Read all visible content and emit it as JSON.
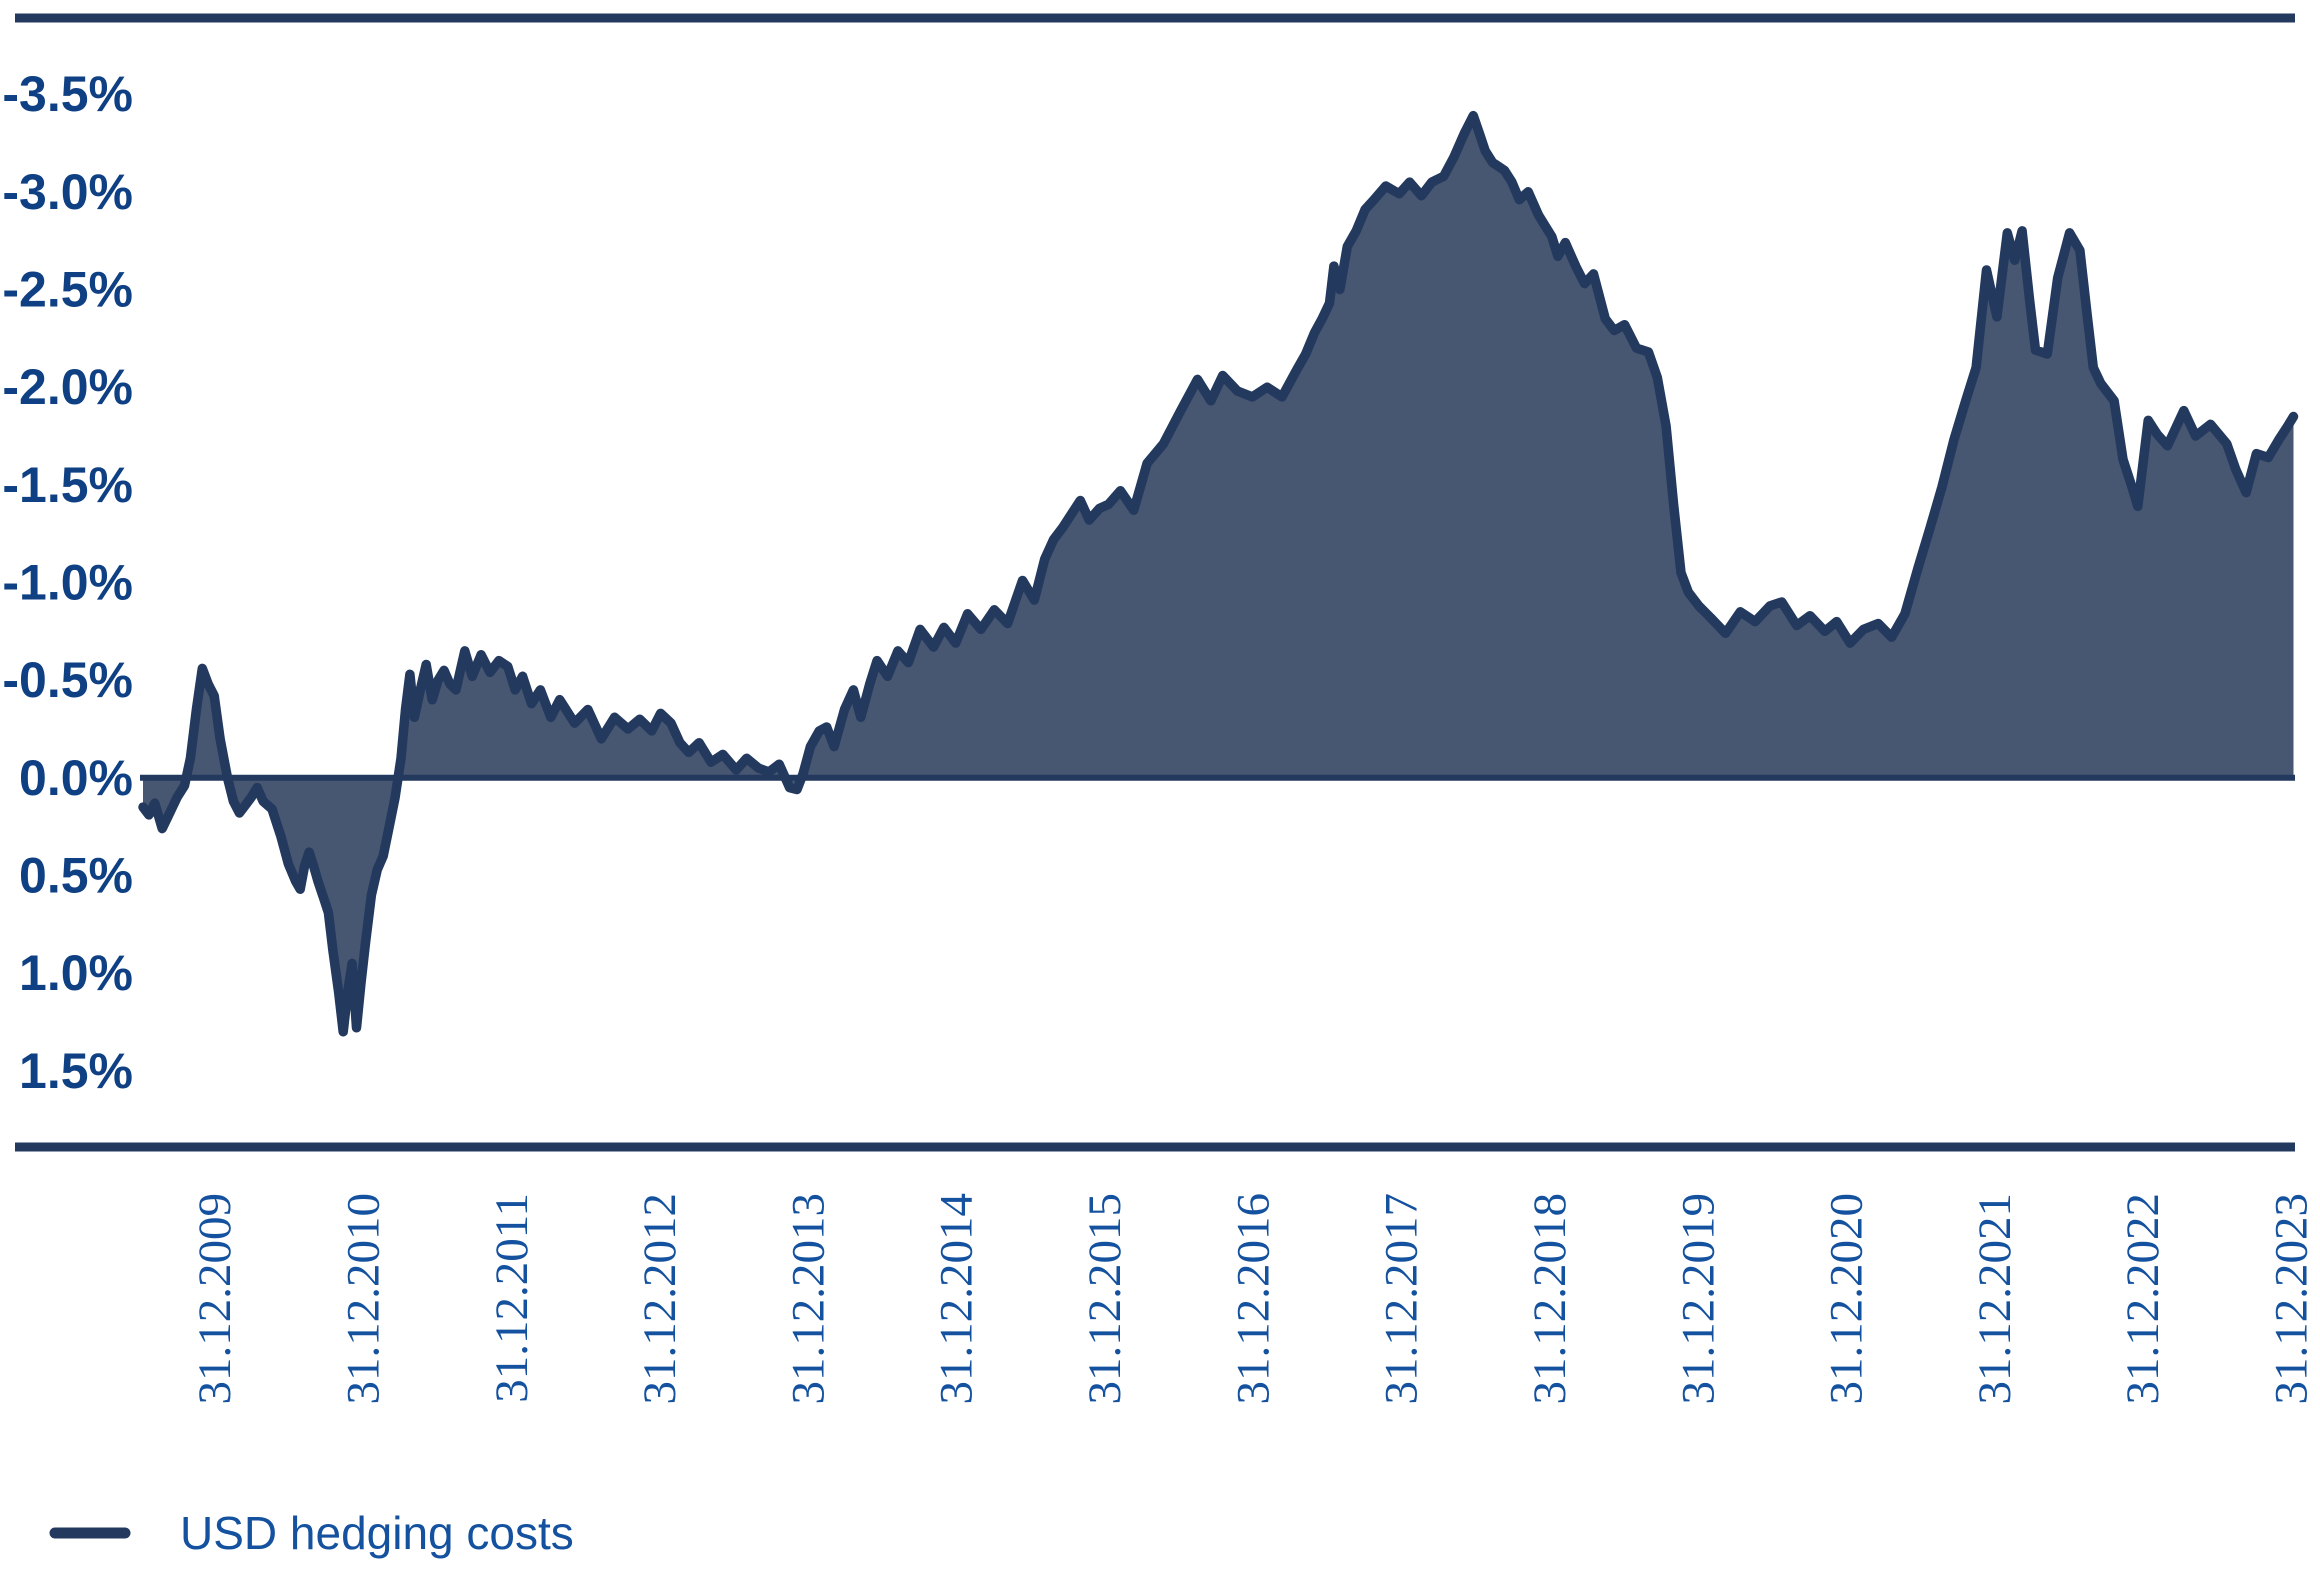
{
  "chart_data": {
    "type": "area",
    "title": "",
    "xlabel": "",
    "ylabel": "",
    "legend_position": "bottom-left",
    "grid": false,
    "y_axis_inverted": true,
    "y_unit": "%",
    "x_domain": [
      2009.5,
      2024.03
    ],
    "y_domain": [
      -3.89,
      1.89
    ],
    "y_ticks": [
      {
        "v": -3.5,
        "label": "-3.5%"
      },
      {
        "v": -3.0,
        "label": "-3.0%"
      },
      {
        "v": -2.5,
        "label": "-2.5%"
      },
      {
        "v": -2.0,
        "label": "-2.0%"
      },
      {
        "v": -1.5,
        "label": "-1.5%"
      },
      {
        "v": -1.0,
        "label": "-1.0%"
      },
      {
        "v": -0.5,
        "label": "-0.5%"
      },
      {
        "v": 0.0,
        "label": "0.0%"
      },
      {
        "v": 0.5,
        "label": "0.5%"
      },
      {
        "v": 1.0,
        "label": "1.0%"
      },
      {
        "v": 1.5,
        "label": "1.5%"
      }
    ],
    "x_ticks": [
      {
        "t": 2010,
        "label": "31.12.2009"
      },
      {
        "t": 2011,
        "label": "31.12.2010"
      },
      {
        "t": 2012,
        "label": "31.12.2011"
      },
      {
        "t": 2013,
        "label": "31.12.2012"
      },
      {
        "t": 2014,
        "label": "31.12.2013"
      },
      {
        "t": 2015,
        "label": "31.12.2014"
      },
      {
        "t": 2016,
        "label": "31.12.2015"
      },
      {
        "t": 2017,
        "label": "31.12.2016"
      },
      {
        "t": 2018,
        "label": "31.12.2017"
      },
      {
        "t": 2019,
        "label": "31.12.2018"
      },
      {
        "t": 2020,
        "label": "31.12.2019"
      },
      {
        "t": 2021,
        "label": "31.12.2020"
      },
      {
        "t": 2022,
        "label": "31.12.2021"
      },
      {
        "t": 2023,
        "label": "31.12.2022"
      },
      {
        "t": 2024,
        "label": "31.12.2023"
      }
    ],
    "colors": {
      "line": "#23395E",
      "fill": "#475671",
      "frame": "#23395E",
      "zero_line": "#23395E",
      "y_label": "#0E4083",
      "x_label": "#14519E",
      "legend_text": "#14519E"
    },
    "series": [
      {
        "name": "USD hedging costs",
        "points": [
          [
            2009.52,
            0.15
          ],
          [
            2009.56,
            0.19
          ],
          [
            2009.6,
            0.13
          ],
          [
            2009.65,
            0.26
          ],
          [
            2009.7,
            0.18
          ],
          [
            2009.75,
            0.1
          ],
          [
            2009.8,
            0.04
          ],
          [
            2009.84,
            -0.1
          ],
          [
            2009.88,
            -0.35
          ],
          [
            2009.92,
            -0.56
          ],
          [
            2009.96,
            -0.48
          ],
          [
            2010.0,
            -0.42
          ],
          [
            2010.04,
            -0.2
          ],
          [
            2010.09,
            0.0
          ],
          [
            2010.13,
            0.12
          ],
          [
            2010.17,
            0.18
          ],
          [
            2010.21,
            0.14
          ],
          [
            2010.25,
            0.1
          ],
          [
            2010.29,
            0.05
          ],
          [
            2010.33,
            0.12
          ],
          [
            2010.39,
            0.16
          ],
          [
            2010.45,
            0.3
          ],
          [
            2010.5,
            0.44
          ],
          [
            2010.55,
            0.53
          ],
          [
            2010.58,
            0.57
          ],
          [
            2010.61,
            0.45
          ],
          [
            2010.64,
            0.38
          ],
          [
            2010.67,
            0.45
          ],
          [
            2010.7,
            0.53
          ],
          [
            2010.74,
            0.62
          ],
          [
            2010.77,
            0.69
          ],
          [
            2010.8,
            0.88
          ],
          [
            2010.84,
            1.1
          ],
          [
            2010.87,
            1.3
          ],
          [
            2010.9,
            1.1
          ],
          [
            2010.93,
            0.95
          ],
          [
            2010.96,
            1.28
          ],
          [
            2010.99,
            1.05
          ],
          [
            2011.02,
            0.85
          ],
          [
            2011.06,
            0.6
          ],
          [
            2011.1,
            0.47
          ],
          [
            2011.14,
            0.4
          ],
          [
            2011.18,
            0.25
          ],
          [
            2011.22,
            0.1
          ],
          [
            2011.26,
            -0.1
          ],
          [
            2011.29,
            -0.35
          ],
          [
            2011.32,
            -0.53
          ],
          [
            2011.35,
            -0.31
          ],
          [
            2011.39,
            -0.45
          ],
          [
            2011.43,
            -0.58
          ],
          [
            2011.47,
            -0.4
          ],
          [
            2011.51,
            -0.5
          ],
          [
            2011.55,
            -0.55
          ],
          [
            2011.59,
            -0.48
          ],
          [
            2011.63,
            -0.45
          ],
          [
            2011.69,
            -0.65
          ],
          [
            2011.74,
            -0.52
          ],
          [
            2011.8,
            -0.63
          ],
          [
            2011.86,
            -0.54
          ],
          [
            2011.92,
            -0.6
          ],
          [
            2011.98,
            -0.57
          ],
          [
            2012.03,
            -0.45
          ],
          [
            2012.08,
            -0.52
          ],
          [
            2012.14,
            -0.38
          ],
          [
            2012.2,
            -0.45
          ],
          [
            2012.27,
            -0.31
          ],
          [
            2012.33,
            -0.4
          ],
          [
            2012.43,
            -0.28
          ],
          [
            2012.52,
            -0.35
          ],
          [
            2012.61,
            -0.2
          ],
          [
            2012.7,
            -0.31
          ],
          [
            2012.79,
            -0.25
          ],
          [
            2012.87,
            -0.3
          ],
          [
            2012.95,
            -0.24
          ],
          [
            2013.01,
            -0.33
          ],
          [
            2013.08,
            -0.28
          ],
          [
            2013.14,
            -0.18
          ],
          [
            2013.2,
            -0.13
          ],
          [
            2013.27,
            -0.18
          ],
          [
            2013.35,
            -0.08
          ],
          [
            2013.43,
            -0.12
          ],
          [
            2013.52,
            -0.04
          ],
          [
            2013.59,
            -0.1
          ],
          [
            2013.67,
            -0.05
          ],
          [
            2013.74,
            -0.03
          ],
          [
            2013.81,
            -0.07
          ],
          [
            2013.88,
            0.05
          ],
          [
            2013.93,
            0.06
          ],
          [
            2013.97,
            -0.02
          ],
          [
            2014.02,
            -0.16
          ],
          [
            2014.08,
            -0.24
          ],
          [
            2014.13,
            -0.26
          ],
          [
            2014.18,
            -0.16
          ],
          [
            2014.25,
            -0.35
          ],
          [
            2014.31,
            -0.45
          ],
          [
            2014.36,
            -0.31
          ],
          [
            2014.42,
            -0.48
          ],
          [
            2014.47,
            -0.6
          ],
          [
            2014.54,
            -0.52
          ],
          [
            2014.61,
            -0.65
          ],
          [
            2014.68,
            -0.59
          ],
          [
            2014.76,
            -0.76
          ],
          [
            2014.85,
            -0.67
          ],
          [
            2014.92,
            -0.77
          ],
          [
            2015.0,
            -0.69
          ],
          [
            2015.08,
            -0.84
          ],
          [
            2015.17,
            -0.76
          ],
          [
            2015.26,
            -0.86
          ],
          [
            2015.35,
            -0.79
          ],
          [
            2015.45,
            -1.01
          ],
          [
            2015.53,
            -0.91
          ],
          [
            2015.6,
            -1.12
          ],
          [
            2015.66,
            -1.22
          ],
          [
            2015.72,
            -1.28
          ],
          [
            2015.78,
            -1.35
          ],
          [
            2015.84,
            -1.42
          ],
          [
            2015.9,
            -1.32
          ],
          [
            2015.97,
            -1.38
          ],
          [
            2016.03,
            -1.4
          ],
          [
            2016.11,
            -1.47
          ],
          [
            2016.2,
            -1.37
          ],
          [
            2016.29,
            -1.61
          ],
          [
            2016.4,
            -1.71
          ],
          [
            2016.51,
            -1.87
          ],
          [
            2016.63,
            -2.04
          ],
          [
            2016.72,
            -1.93
          ],
          [
            2016.8,
            -2.06
          ],
          [
            2016.9,
            -1.98
          ],
          [
            2017.0,
            -1.95
          ],
          [
            2017.1,
            -2.0
          ],
          [
            2017.2,
            -1.95
          ],
          [
            2017.3,
            -2.09
          ],
          [
            2017.36,
            -2.17
          ],
          [
            2017.42,
            -2.28
          ],
          [
            2017.47,
            -2.35
          ],
          [
            2017.52,
            -2.43
          ],
          [
            2017.55,
            -2.62
          ],
          [
            2017.59,
            -2.5
          ],
          [
            2017.64,
            -2.72
          ],
          [
            2017.7,
            -2.8
          ],
          [
            2017.76,
            -2.91
          ],
          [
            2017.82,
            -2.96
          ],
          [
            2017.9,
            -3.03
          ],
          [
            2017.99,
            -2.99
          ],
          [
            2018.06,
            -3.05
          ],
          [
            2018.14,
            -2.98
          ],
          [
            2018.21,
            -3.05
          ],
          [
            2018.29,
            -3.08
          ],
          [
            2018.36,
            -3.18
          ],
          [
            2018.43,
            -3.3
          ],
          [
            2018.49,
            -3.39
          ],
          [
            2018.53,
            -3.3
          ],
          [
            2018.57,
            -3.21
          ],
          [
            2018.62,
            -3.15
          ],
          [
            2018.7,
            -3.11
          ],
          [
            2018.75,
            -3.05
          ],
          [
            2018.8,
            -2.96
          ],
          [
            2018.86,
            -3.0
          ],
          [
            2018.93,
            -2.88
          ],
          [
            2019.02,
            -2.77
          ],
          [
            2019.06,
            -2.67
          ],
          [
            2019.11,
            -2.74
          ],
          [
            2019.18,
            -2.62
          ],
          [
            2019.24,
            -2.53
          ],
          [
            2019.3,
            -2.58
          ],
          [
            2019.38,
            -2.35
          ],
          [
            2019.44,
            -2.29
          ],
          [
            2019.51,
            -2.32
          ],
          [
            2019.59,
            -2.2
          ],
          [
            2019.67,
            -2.18
          ],
          [
            2019.73,
            -2.05
          ],
          [
            2019.79,
            -1.8
          ],
          [
            2019.84,
            -1.4
          ],
          [
            2019.89,
            -1.05
          ],
          [
            2019.94,
            -0.95
          ],
          [
            2020.01,
            -0.88
          ],
          [
            2020.09,
            -0.82
          ],
          [
            2020.19,
            -0.74
          ],
          [
            2020.29,
            -0.85
          ],
          [
            2020.39,
            -0.8
          ],
          [
            2020.49,
            -0.88
          ],
          [
            2020.57,
            -0.9
          ],
          [
            2020.67,
            -0.78
          ],
          [
            2020.76,
            -0.83
          ],
          [
            2020.86,
            -0.75
          ],
          [
            2020.94,
            -0.8
          ],
          [
            2021.03,
            -0.69
          ],
          [
            2021.12,
            -0.76
          ],
          [
            2021.22,
            -0.79
          ],
          [
            2021.31,
            -0.72
          ],
          [
            2021.4,
            -0.84
          ],
          [
            2021.49,
            -1.08
          ],
          [
            2021.57,
            -1.28
          ],
          [
            2021.65,
            -1.49
          ],
          [
            2021.73,
            -1.73
          ],
          [
            2021.81,
            -1.93
          ],
          [
            2021.88,
            -2.1
          ],
          [
            2021.95,
            -2.6
          ],
          [
            2022.02,
            -2.36
          ],
          [
            2022.09,
            -2.79
          ],
          [
            2022.14,
            -2.65
          ],
          [
            2022.19,
            -2.8
          ],
          [
            2022.24,
            -2.45
          ],
          [
            2022.28,
            -2.19
          ],
          [
            2022.36,
            -2.17
          ],
          [
            2022.43,
            -2.56
          ],
          [
            2022.51,
            -2.79
          ],
          [
            2022.58,
            -2.7
          ],
          [
            2022.63,
            -2.36
          ],
          [
            2022.67,
            -2.1
          ],
          [
            2022.72,
            -2.02
          ],
          [
            2022.81,
            -1.93
          ],
          [
            2022.87,
            -1.63
          ],
          [
            2022.93,
            -1.49
          ],
          [
            2022.97,
            -1.39
          ],
          [
            2023.04,
            -1.83
          ],
          [
            2023.1,
            -1.76
          ],
          [
            2023.17,
            -1.7
          ],
          [
            2023.28,
            -1.88
          ],
          [
            2023.36,
            -1.75
          ],
          [
            2023.46,
            -1.81
          ],
          [
            2023.57,
            -1.71
          ],
          [
            2023.63,
            -1.58
          ],
          [
            2023.7,
            -1.46
          ],
          [
            2023.77,
            -1.66
          ],
          [
            2023.85,
            -1.64
          ],
          [
            2023.92,
            -1.73
          ],
          [
            2023.98,
            -1.8
          ],
          [
            2024.02,
            -1.85
          ]
        ]
      }
    ]
  },
  "legend": {
    "label": "USD hedging costs"
  }
}
